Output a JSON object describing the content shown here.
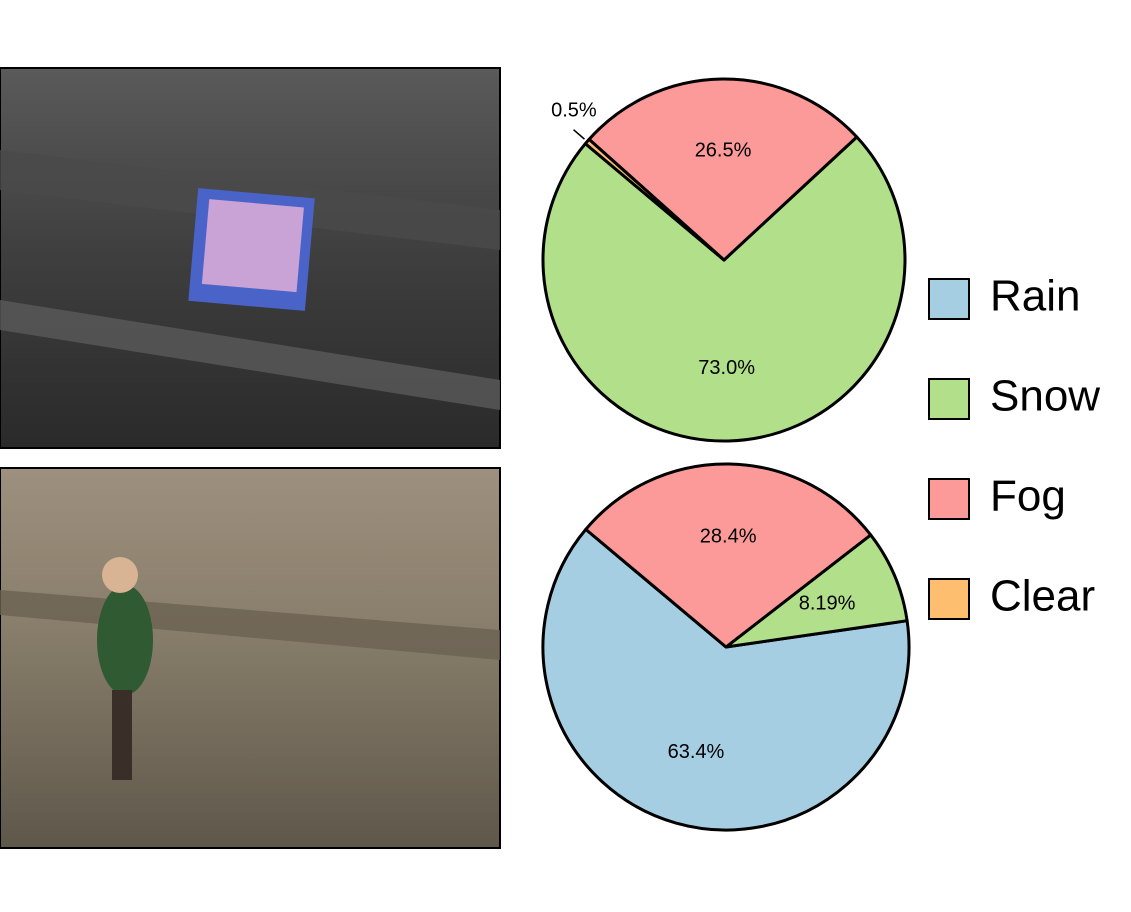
{
  "chart_data": [
    {
      "type": "pie",
      "categories": [
        "Snow",
        "Fog",
        "Clear"
      ],
      "values": [
        73.0,
        26.5,
        0.5
      ],
      "value_labels": [
        "73.0%",
        "26.5%",
        "0.5%"
      ],
      "colors": [
        "#b2df8a",
        "#fb9a99",
        "#fdbf6f"
      ]
    },
    {
      "type": "pie",
      "categories": [
        "Rain",
        "Snow",
        "Fog"
      ],
      "values": [
        63.4,
        8.19,
        28.4
      ],
      "value_labels": [
        "63.4%",
        "8.19%",
        "28.4%"
      ],
      "colors": [
        "#a6cee3",
        "#b2df8a",
        "#fb9a99"
      ]
    }
  ],
  "legend": {
    "labels": [
      "Rain",
      "Snow",
      "Fog",
      "Clear"
    ],
    "colors": [
      "#a6cee3",
      "#b2df8a",
      "#fb9a99",
      "#fdbf6f"
    ],
    "position": "right"
  }
}
